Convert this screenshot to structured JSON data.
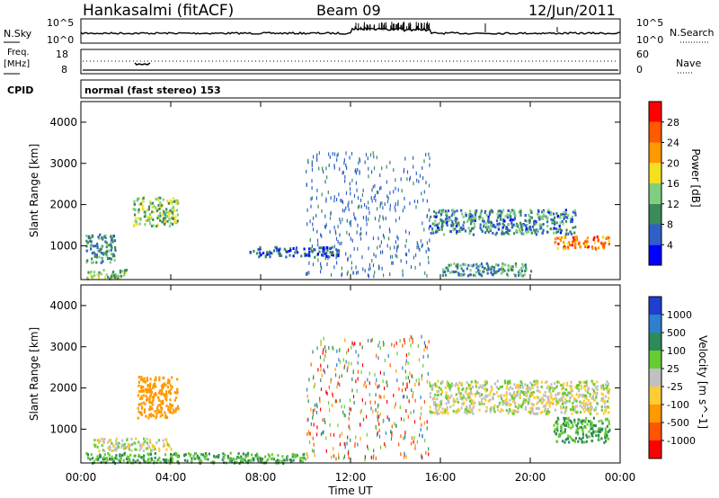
{
  "header": {
    "station": "Hankasalmi (fitACF)",
    "beam": "Beam 09",
    "date": "12/Jun/2011"
  },
  "noise_panel": {
    "left_label": "N.Sky",
    "right_label": "N.Search",
    "tick_high": "10^5",
    "tick_low": "10^0"
  },
  "freq_panel": {
    "left_label_1": "Freq.",
    "left_label_2": "[MHz]",
    "left_tick_high": "18",
    "left_tick_low": "8",
    "right_label": "Nave",
    "right_tick_high": "60",
    "right_tick_low": "0"
  },
  "cpid_panel": {
    "label": "CPID",
    "value": "normal (fast stereo) 153"
  },
  "x_axis": {
    "label": "Time UT",
    "ticks": [
      "00:00",
      "04:00",
      "08:00",
      "12:00",
      "16:00",
      "20:00",
      "00:00"
    ]
  },
  "power_panel": {
    "ylabel": "Slant Range [km]",
    "yticks": [
      "1000",
      "2000",
      "3000",
      "4000"
    ],
    "cbar_label": "Power [dB]",
    "cbar_ticks": [
      "4",
      "8",
      "12",
      "16",
      "20",
      "24",
      "28"
    ],
    "cbar_colors": [
      "#0000ff",
      "#2e60c8",
      "#3b8a5a",
      "#7fcf7f",
      "#f5e020",
      "#ff9900",
      "#ff5a00",
      "#ff0000"
    ]
  },
  "velocity_panel": {
    "ylabel": "Slant Range [km]",
    "yticks": [
      "1000",
      "2000",
      "3000",
      "4000"
    ],
    "cbar_label": "Velocity [m s^-1]",
    "cbar_ticks": [
      "1000",
      "500",
      "100",
      "25",
      "-25",
      "-100",
      "-500",
      "-1000"
    ],
    "cbar_colors": [
      "#1f3fcf",
      "#2f7fcf",
      "#2e8b57",
      "#66cc33",
      "#c0c0c0",
      "#ffcc33",
      "#ff9900",
      "#ff5500",
      "#ff0000"
    ]
  },
  "chart_data": [
    {
      "type": "heatmap",
      "title": "Power",
      "xlabel": "Time UT",
      "ylabel": "Slant Range [km]",
      "xlim": [
        0,
        24
      ],
      "ylim": [
        180,
        4500
      ],
      "colorbar": {
        "label": "Power [dB]",
        "min": 0,
        "max": 32
      },
      "regions": [
        {
          "t": [
            0.2,
            2.0
          ],
          "r": [
            220,
            450
          ],
          "level": 14
        },
        {
          "t": [
            0.2,
            1.5
          ],
          "r": [
            600,
            1300
          ],
          "level": 10
        },
        {
          "t": [
            2.3,
            4.3
          ],
          "r": [
            1500,
            2200
          ],
          "level": 14
        },
        {
          "t": [
            7.5,
            11.5
          ],
          "r": [
            750,
            1000
          ],
          "level": 6
        },
        {
          "t": [
            15.5,
            22.0
          ],
          "r": [
            1300,
            1900
          ],
          "level": 9
        },
        {
          "t": [
            21.0,
            23.5
          ],
          "r": [
            950,
            1250
          ],
          "level": 24
        },
        {
          "t": [
            16.0,
            20.0
          ],
          "r": [
            300,
            600
          ],
          "level": 10
        }
      ]
    },
    {
      "type": "heatmap",
      "title": "Velocity",
      "xlabel": "Time UT",
      "ylabel": "Slant Range [km]",
      "xlim": [
        0,
        24
      ],
      "ylim": [
        180,
        4500
      ],
      "colorbar": {
        "label": "Velocity [m s^-1]",
        "min": -1000,
        "max": 1000
      },
      "regions": [
        {
          "t": [
            0.2,
            10.0
          ],
          "r": [
            200,
            450
          ],
          "velocity": 100
        },
        {
          "t": [
            2.5,
            4.3
          ],
          "r": [
            1300,
            2300
          ],
          "velocity": -300
        },
        {
          "t": [
            0.5,
            4.0
          ],
          "r": [
            500,
            800
          ],
          "velocity": 0
        },
        {
          "t": [
            15.5,
            23.5
          ],
          "r": [
            1400,
            2200
          ],
          "velocity": 0
        },
        {
          "t": [
            21.0,
            23.5
          ],
          "r": [
            700,
            1300
          ],
          "velocity": 100
        }
      ]
    }
  ]
}
